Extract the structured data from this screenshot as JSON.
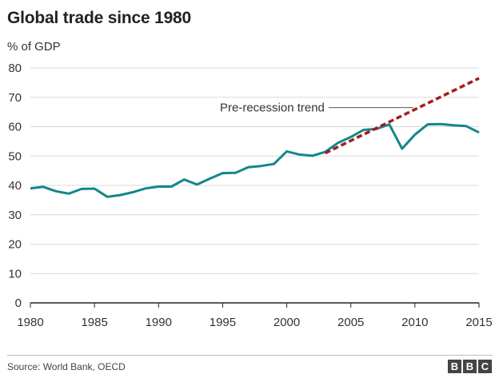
{
  "chart_data": {
    "type": "line",
    "title": "Global trade since 1980",
    "ylabel": "% of GDP",
    "xlabel": "",
    "xlim": [
      1980,
      2015
    ],
    "ylim": [
      0,
      80
    ],
    "x_ticks": [
      1980,
      1985,
      1990,
      1995,
      2000,
      2005,
      2010,
      2015
    ],
    "y_ticks": [
      0,
      10,
      20,
      30,
      40,
      50,
      60,
      70,
      80
    ],
    "grid": true,
    "series": [
      {
        "style": "solid",
        "color": "#12878a",
        "x": [
          1980,
          1981,
          1982,
          1983,
          1984,
          1985,
          1986,
          1987,
          1988,
          1989,
          1990,
          1991,
          1992,
          1993,
          1994,
          1995,
          1996,
          1997,
          1998,
          1999,
          2000,
          2001,
          2002,
          2003,
          2004,
          2005,
          2006,
          2007,
          2008,
          2009,
          2010,
          2011,
          2012,
          2013,
          2014,
          2015
        ],
        "y": [
          39,
          39.5,
          38,
          37.2,
          38.8,
          38.9,
          36.1,
          36.7,
          37.7,
          39,
          39.6,
          39.6,
          42,
          40.3,
          42.3,
          44.2,
          44.3,
          46.2,
          46.6,
          47.3,
          51.6,
          50.5,
          50.1,
          51.4,
          54.5,
          56.5,
          58.9,
          59.2,
          60.8,
          52.5,
          57.3,
          60.8,
          60.9,
          60.5,
          60.2,
          58
        ]
      },
      {
        "name": "Pre-recession trend",
        "style": "dashed",
        "color": "#a51c1e",
        "x": [
          2003,
          2015
        ],
        "y": [
          51,
          76.5
        ]
      }
    ],
    "annotations": [
      {
        "text": "Pre-recession trend",
        "target_x": 2010,
        "target_y": 66.5
      }
    ]
  },
  "footer": {
    "source": "Source: World Bank, OECD",
    "logo_letters": [
      "B",
      "B",
      "C"
    ]
  }
}
